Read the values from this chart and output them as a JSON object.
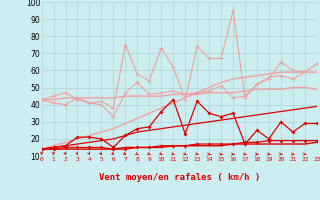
{
  "x": [
    0,
    1,
    2,
    3,
    4,
    5,
    6,
    7,
    8,
    9,
    10,
    11,
    12,
    13,
    14,
    15,
    16,
    17,
    18,
    19,
    20,
    21,
    22,
    23
  ],
  "line_pink1": [
    43,
    41,
    40,
    44,
    41,
    40,
    33,
    47,
    53,
    46,
    47,
    48,
    46,
    47,
    48,
    51,
    44,
    45,
    52,
    56,
    57,
    55,
    59,
    64
  ],
  "line_pink2": [
    43,
    43,
    44,
    44,
    44,
    44,
    44,
    45,
    45,
    45,
    45,
    46,
    46,
    46,
    47,
    47,
    47,
    48,
    49,
    49,
    49,
    50,
    50,
    49
  ],
  "line_pink3": [
    14,
    16,
    18,
    20,
    22,
    24,
    26,
    29,
    32,
    35,
    38,
    41,
    44,
    47,
    50,
    53,
    55,
    56,
    57,
    58,
    59,
    59,
    59,
    59
  ],
  "line_pink4": [
    43,
    45,
    47,
    43,
    41,
    42,
    38,
    75,
    58,
    54,
    73,
    62,
    43,
    74,
    67,
    67,
    95,
    44,
    52,
    55,
    65,
    60,
    59,
    64
  ],
  "line_red1": [
    14,
    15,
    16,
    17,
    18,
    19,
    20,
    22,
    24,
    25,
    26,
    27,
    28,
    29,
    30,
    31,
    32,
    33,
    34,
    35,
    36,
    37,
    38,
    39
  ],
  "line_red2": [
    14,
    15,
    16,
    21,
    21,
    20,
    15,
    22,
    26,
    27,
    36,
    43,
    23,
    42,
    35,
    33,
    35,
    17,
    25,
    20,
    30,
    24,
    29,
    29
  ],
  "line_red3": [
    14,
    14,
    14,
    14,
    14,
    14,
    14,
    15,
    15,
    15,
    15,
    16,
    16,
    16,
    16,
    16,
    17,
    17,
    17,
    17,
    17,
    17,
    17,
    18
  ],
  "line_red4": [
    14,
    14,
    15,
    15,
    15,
    15,
    14,
    14,
    15,
    15,
    16,
    16,
    16,
    17,
    17,
    17,
    17,
    18,
    18,
    19,
    19,
    19,
    19,
    19
  ],
  "arrows_angle": [
    90,
    85,
    80,
    75,
    70,
    65,
    55,
    50,
    45,
    40,
    35,
    30,
    25,
    20,
    15,
    10,
    10,
    10,
    10,
    10,
    10,
    10,
    10,
    10
  ],
  "bg_color": "#cceef0",
  "grid_color": "#aad4d8",
  "light_pink": "#f0a0a0",
  "dark_red": "#dd0000",
  "xlabel": "Vent moyen/en rafales ( km/h )",
  "ylim": [
    10,
    100
  ],
  "xlim": [
    0,
    23
  ],
  "yticks": [
    10,
    20,
    30,
    40,
    50,
    60,
    70,
    80,
    90,
    100
  ]
}
